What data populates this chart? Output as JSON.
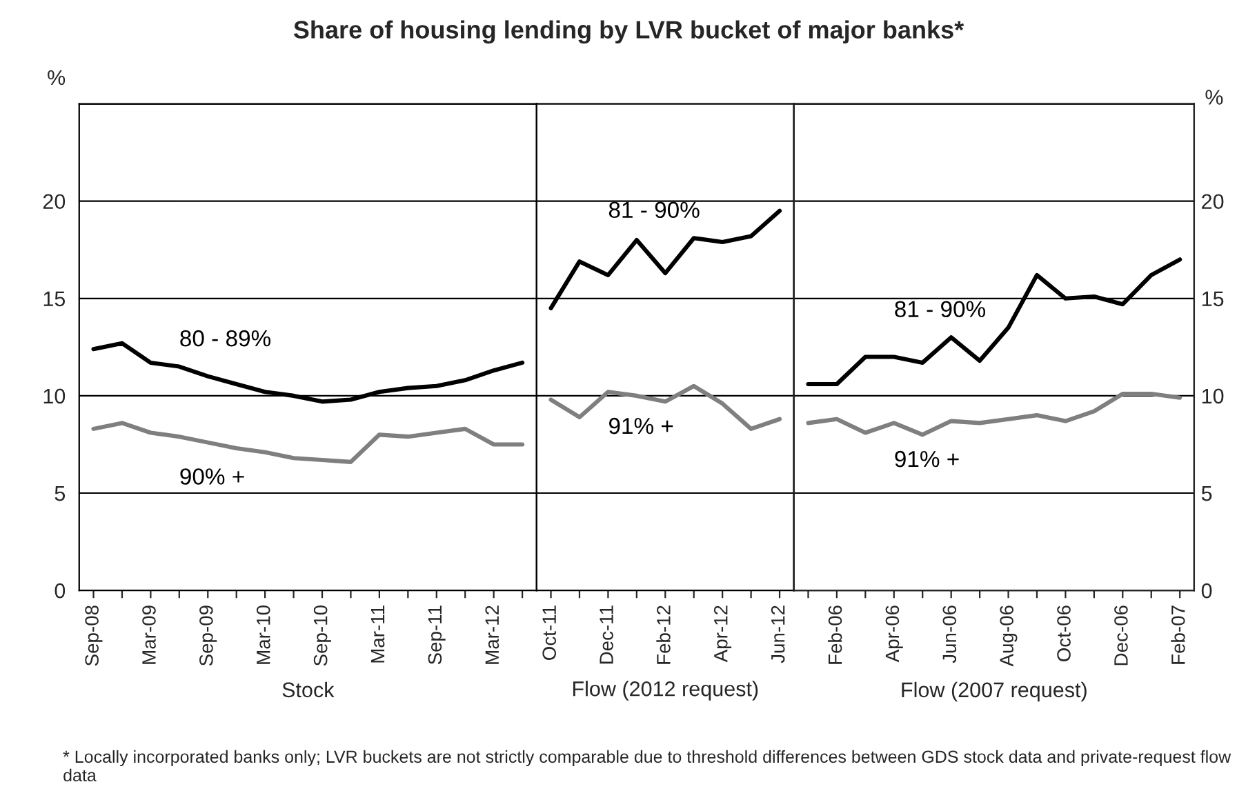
{
  "chart_data": [
    {
      "type": "line",
      "title": "Share of housing lending by LVR bucket of major banks*",
      "xlabel": "Stock",
      "ylabel": "%",
      "categories": [
        "Sep-08",
        null,
        "Mar-09",
        null,
        "Sep-09",
        null,
        "Mar-10",
        null,
        "Sep-10",
        null,
        "Mar-11",
        null,
        "Sep-11",
        null,
        "Mar-12",
        null
      ],
      "series": [
        {
          "name": "80 - 89%",
          "color": "#000000",
          "values": [
            12.4,
            12.7,
            11.7,
            11.5,
            11.0,
            10.6,
            10.2,
            10.0,
            9.7,
            9.8,
            10.2,
            10.4,
            10.5,
            10.8,
            11.3,
            11.7
          ]
        },
        {
          "name": "90% +",
          "color": "#7f7f7f",
          "values": [
            8.3,
            8.6,
            8.1,
            7.9,
            7.6,
            7.3,
            7.1,
            6.8,
            6.7,
            6.6,
            8.0,
            7.9,
            8.1,
            8.3,
            7.5,
            7.5
          ]
        }
      ],
      "ylim": [
        0,
        25
      ],
      "yticks": [
        0,
        5,
        10,
        15,
        20,
        {
          "value": 25,
          "label": null
        }
      ],
      "grid": "y",
      "legend": false,
      "line_style": "solid",
      "marker": "none",
      "annotations": [
        "* Locally incorporated banks only; LVR buckets are not strictly comparable due to threshold differences between GDS stock data and private-request flow data"
      ]
    },
    {
      "type": "line",
      "xlabel": "Flow (2012 request)",
      "categories": [
        "Oct-11",
        null,
        "Dec-11",
        null,
        "Feb-12",
        null,
        "Apr-12",
        null,
        "Jun-12"
      ],
      "series": [
        {
          "name": "81 - 90%",
          "color": "#000000",
          "values": [
            14.5,
            16.9,
            16.2,
            18.0,
            16.3,
            18.1,
            17.9,
            18.2,
            19.5
          ]
        },
        {
          "name": "91% +",
          "color": "#7f7f7f",
          "values": [
            9.8,
            8.9,
            10.2,
            10.0,
            9.7,
            10.5,
            9.6,
            8.3,
            8.8
          ]
        }
      ],
      "ylim": [
        0,
        25
      ],
      "tick_labels": "x",
      "grid": "y",
      "legend": false,
      "line_style": "solid",
      "marker": "none"
    },
    {
      "type": "line",
      "xlabel": "Flow (2007 request)",
      "y2label": "%",
      "categories": [
        null,
        "Feb-06",
        null,
        "Apr-06",
        null,
        "Jun-06",
        null,
        "Aug-06",
        null,
        "Oct-06",
        null,
        "Dec-06",
        null,
        "Feb-07"
      ],
      "series": [
        {
          "name": "81 - 90%",
          "color": "#000000",
          "axis": "y2",
          "values": [
            10.6,
            10.6,
            12.0,
            12.0,
            11.7,
            13.0,
            11.8,
            13.5,
            16.2,
            15.0,
            15.1,
            14.7,
            16.2,
            17.0
          ]
        },
        {
          "name": "91% +",
          "color": "#7f7f7f",
          "axis": "y2",
          "values": [
            8.6,
            8.8,
            8.1,
            8.6,
            8.0,
            8.7,
            8.6,
            8.8,
            9.0,
            8.7,
            9.2,
            10.1,
            10.1,
            9.9
          ]
        }
      ],
      "y2lim": [
        0,
        25
      ],
      "y2ticks": [
        0,
        5,
        10,
        15,
        20,
        {
          "value": 25,
          "label": null
        }
      ],
      "grid": "y",
      "legend": false,
      "line_style": "solid",
      "marker": "none"
    }
  ]
}
